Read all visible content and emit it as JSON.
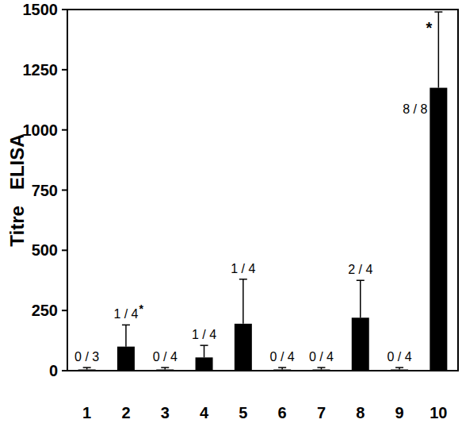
{
  "chart_data": {
    "type": "bar",
    "y_label": "Titre   ELISA",
    "categories": [
      "1",
      "2",
      "3",
      "4",
      "5",
      "6",
      "7",
      "8",
      "9",
      "10"
    ],
    "values": [
      5,
      100,
      5,
      55,
      195,
      5,
      5,
      220,
      5,
      1175
    ],
    "errors": [
      8,
      90,
      8,
      50,
      185,
      8,
      8,
      155,
      8,
      315
    ],
    "responders": [
      "0 / 3",
      "1 / 4",
      "0 / 4",
      "1 / 4",
      "1 / 4",
      "0 / 4",
      "0 / 4",
      "2 / 4",
      "0 / 4",
      "8 / 8"
    ],
    "significance": [
      null,
      "*",
      null,
      null,
      null,
      null,
      null,
      null,
      null,
      "*"
    ],
    "color": "#000000",
    "ylim": [
      0,
      1500
    ],
    "yticks": [
      0,
      250,
      500,
      750,
      1000,
      1250,
      1500
    ],
    "grid": false
  }
}
